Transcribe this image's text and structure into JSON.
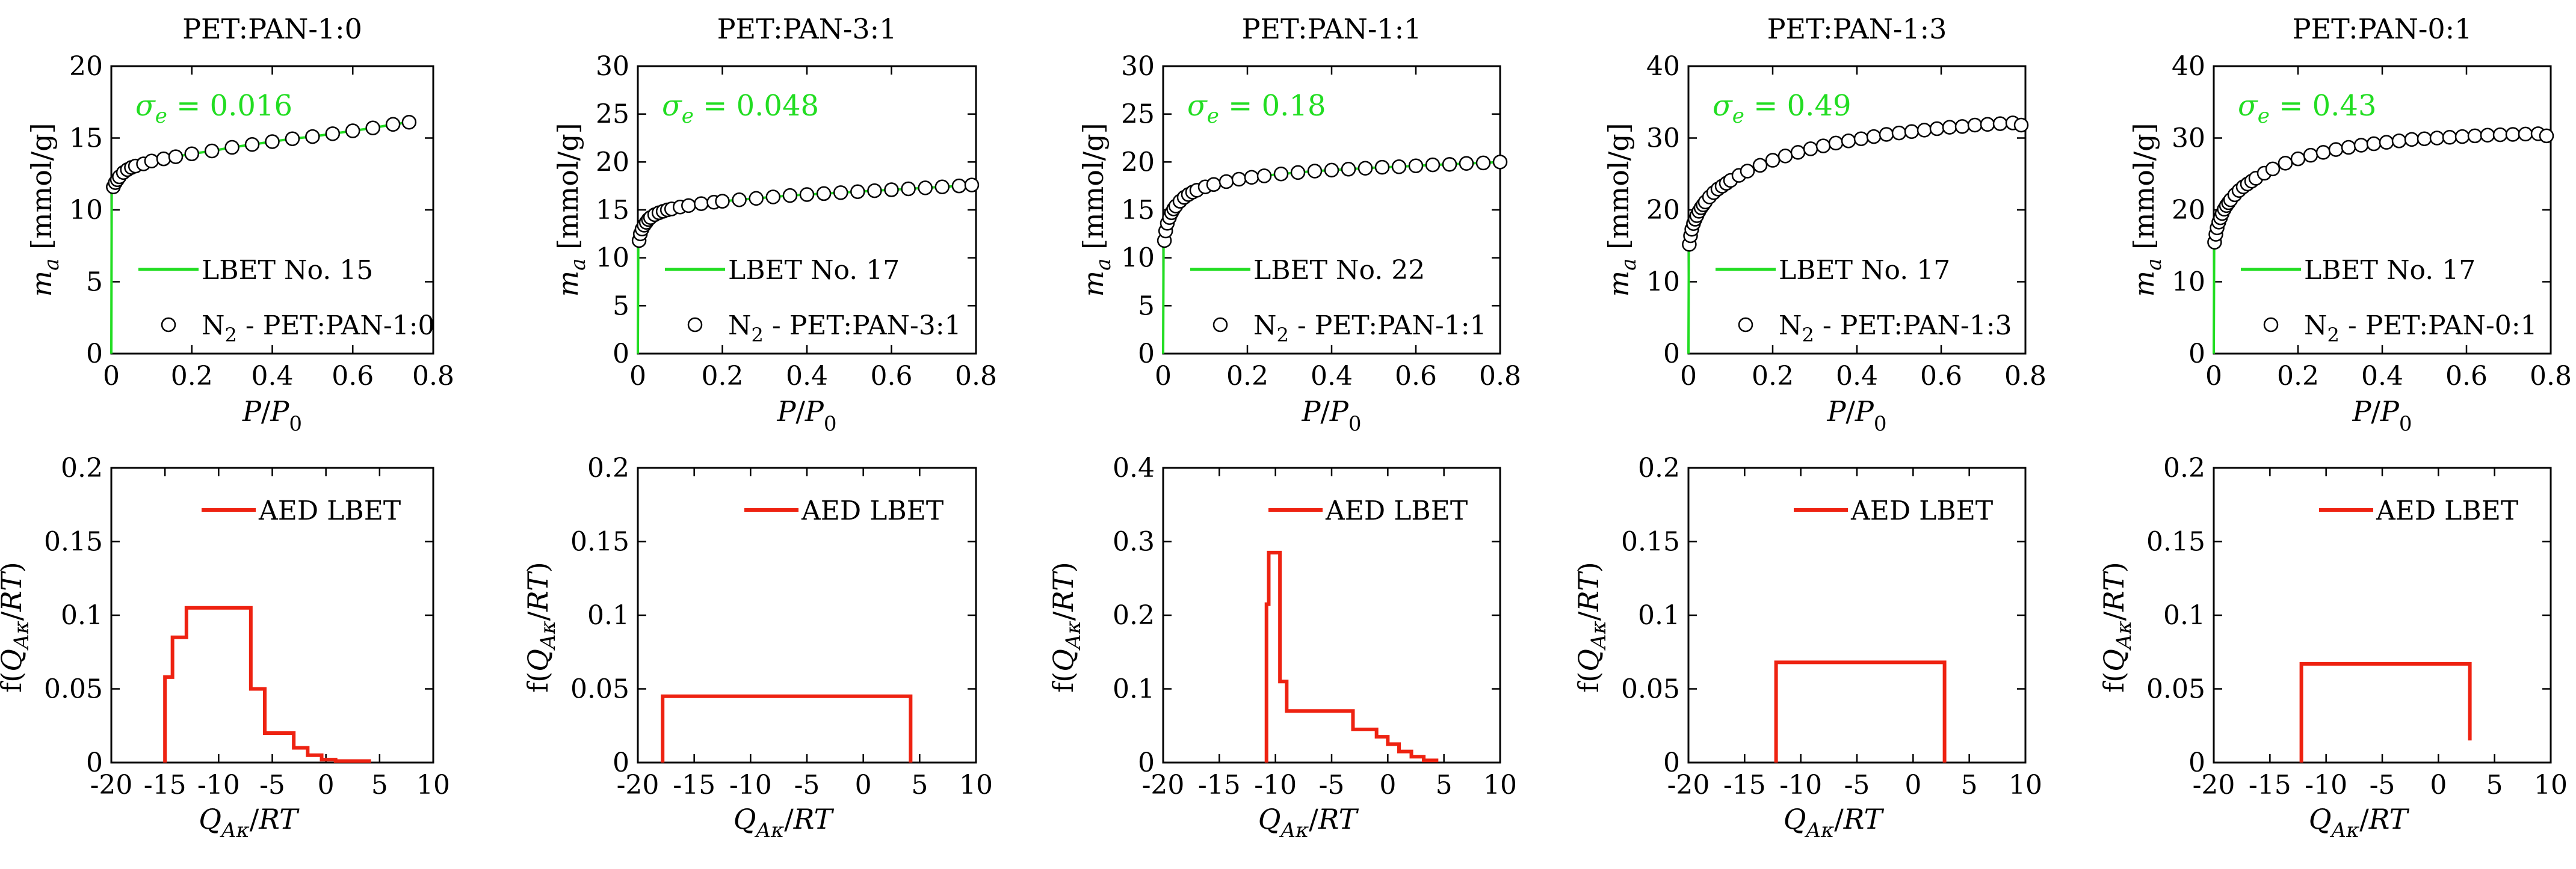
{
  "figure": {
    "description_colors": {
      "fit_line": "#22dd22",
      "aed_line": "#ee2211",
      "sigma_text": "#22dd22",
      "points": "#000000"
    }
  },
  "chart_data": [
    {
      "type": "scatter",
      "title": "PET:PAN-1:0",
      "xlabel": "P/P0",
      "ylabel": "ma [mmol/g]",
      "xlim": [
        0,
        0.8
      ],
      "ylim": [
        0,
        20
      ],
      "xticks": [
        "0",
        "0.2",
        "0.4",
        "0.6",
        "0.8"
      ],
      "yticks": [
        "0",
        "5",
        "10",
        "15",
        "20"
      ],
      "sigma_label": "σe = 0.016",
      "legend": [
        "LBET No. 15",
        "N2 - PET:PAN-1:0"
      ],
      "x": [
        0.005,
        0.01,
        0.015,
        0.02,
        0.03,
        0.04,
        0.05,
        0.06,
        0.08,
        0.1,
        0.13,
        0.16,
        0.2,
        0.25,
        0.3,
        0.35,
        0.4,
        0.45,
        0.5,
        0.55,
        0.6,
        0.65,
        0.7,
        0.74
      ],
      "y": [
        11.6,
        11.9,
        12.1,
        12.3,
        12.6,
        12.8,
        12.95,
        13.05,
        13.2,
        13.4,
        13.55,
        13.7,
        13.9,
        14.1,
        14.35,
        14.55,
        14.75,
        14.95,
        15.1,
        15.3,
        15.5,
        15.7,
        15.95,
        16.1
      ]
    },
    {
      "type": "scatter",
      "title": "PET:PAN-3:1",
      "xlabel": "P/P0",
      "ylabel": "ma [mmol/g]",
      "xlim": [
        0,
        0.8
      ],
      "ylim": [
        0,
        30
      ],
      "xticks": [
        "0",
        "0.2",
        "0.4",
        "0.6",
        "0.8"
      ],
      "yticks": [
        "0",
        "5",
        "10",
        "15",
        "20",
        "25",
        "30"
      ],
      "sigma_label": "σe = 0.048",
      "legend": [
        "LBET No. 17",
        "N2 - PET:PAN-3:1"
      ],
      "x": [
        0.003,
        0.006,
        0.01,
        0.015,
        0.02,
        0.025,
        0.03,
        0.04,
        0.05,
        0.06,
        0.07,
        0.08,
        0.1,
        0.12,
        0.15,
        0.18,
        0.2,
        0.24,
        0.28,
        0.32,
        0.36,
        0.4,
        0.44,
        0.48,
        0.52,
        0.56,
        0.6,
        0.64,
        0.68,
        0.72,
        0.76,
        0.79
      ],
      "y": [
        11.8,
        12.5,
        13.0,
        13.4,
        13.7,
        14.0,
        14.2,
        14.5,
        14.7,
        14.85,
        15.0,
        15.1,
        15.3,
        15.45,
        15.65,
        15.8,
        15.9,
        16.05,
        16.2,
        16.35,
        16.5,
        16.6,
        16.7,
        16.8,
        16.9,
        17.0,
        17.1,
        17.2,
        17.3,
        17.4,
        17.5,
        17.6
      ]
    },
    {
      "type": "scatter",
      "title": "PET:PAN-1:1",
      "xlabel": "P/P0",
      "ylabel": "ma [mmol/g]",
      "xlim": [
        0,
        0.8
      ],
      "ylim": [
        0,
        30
      ],
      "xticks": [
        "0",
        "0.2",
        "0.4",
        "0.6",
        "0.8"
      ],
      "yticks": [
        "0",
        "5",
        "10",
        "15",
        "20",
        "25",
        "30"
      ],
      "sigma_label": "σe = 0.18",
      "legend": [
        "LBET No. 22",
        "N2 - PET:PAN-1:1"
      ],
      "x": [
        0.003,
        0.006,
        0.01,
        0.015,
        0.02,
        0.025,
        0.03,
        0.04,
        0.05,
        0.06,
        0.07,
        0.08,
        0.1,
        0.12,
        0.15,
        0.18,
        0.21,
        0.24,
        0.28,
        0.32,
        0.36,
        0.4,
        0.44,
        0.48,
        0.52,
        0.56,
        0.6,
        0.64,
        0.68,
        0.72,
        0.76,
        0.8
      ],
      "y": [
        11.8,
        12.8,
        13.6,
        14.2,
        14.7,
        15.1,
        15.4,
        15.9,
        16.3,
        16.6,
        16.85,
        17.05,
        17.4,
        17.65,
        17.95,
        18.2,
        18.4,
        18.55,
        18.75,
        18.9,
        19.05,
        19.15,
        19.25,
        19.35,
        19.45,
        19.5,
        19.6,
        19.7,
        19.75,
        19.85,
        19.9,
        20.0
      ]
    },
    {
      "type": "scatter",
      "title": "PET:PAN-1:3",
      "xlabel": "P/P0",
      "ylabel": "ma [mmol/g]",
      "xlim": [
        0,
        0.8
      ],
      "ylim": [
        0,
        40
      ],
      "xticks": [
        "0",
        "0.2",
        "0.4",
        "0.6",
        "0.8"
      ],
      "yticks": [
        "0",
        "10",
        "20",
        "30",
        "40"
      ],
      "sigma_label": "σe = 0.49",
      "legend": [
        "LBET No. 17",
        "N2 - PET:PAN-1:3"
      ],
      "x": [
        0.002,
        0.005,
        0.008,
        0.012,
        0.016,
        0.02,
        0.025,
        0.03,
        0.035,
        0.04,
        0.05,
        0.06,
        0.07,
        0.08,
        0.09,
        0.1,
        0.12,
        0.14,
        0.17,
        0.2,
        0.23,
        0.26,
        0.29,
        0.32,
        0.35,
        0.38,
        0.41,
        0.44,
        0.47,
        0.5,
        0.53,
        0.56,
        0.59,
        0.62,
        0.65,
        0.68,
        0.71,
        0.74,
        0.77,
        0.79
      ],
      "y": [
        15.2,
        16.4,
        17.3,
        18.1,
        18.7,
        19.2,
        19.8,
        20.3,
        20.7,
        21.1,
        21.8,
        22.4,
        22.9,
        23.3,
        23.7,
        24.1,
        24.8,
        25.4,
        26.2,
        26.9,
        27.5,
        28.0,
        28.5,
        28.9,
        29.3,
        29.6,
        29.9,
        30.2,
        30.5,
        30.7,
        30.9,
        31.1,
        31.3,
        31.5,
        31.6,
        31.8,
        31.9,
        32.0,
        32.1,
        31.8
      ]
    },
    {
      "type": "scatter",
      "title": "PET:PAN-0:1",
      "xlabel": "P/P0",
      "ylabel": "ma [mmol/g]",
      "xlim": [
        0,
        0.8
      ],
      "ylim": [
        0,
        40
      ],
      "xticks": [
        "0",
        "0.2",
        "0.4",
        "0.6",
        "0.8"
      ],
      "yticks": [
        "0",
        "10",
        "20",
        "30",
        "40"
      ],
      "sigma_label": "σe = 0.43",
      "legend": [
        "LBET No. 17",
        "N2 - PET:PAN-0:1"
      ],
      "x": [
        0.002,
        0.005,
        0.008,
        0.012,
        0.016,
        0.02,
        0.025,
        0.03,
        0.035,
        0.04,
        0.05,
        0.06,
        0.07,
        0.08,
        0.09,
        0.1,
        0.12,
        0.14,
        0.17,
        0.2,
        0.23,
        0.26,
        0.29,
        0.32,
        0.35,
        0.38,
        0.41,
        0.44,
        0.47,
        0.5,
        0.53,
        0.56,
        0.59,
        0.62,
        0.65,
        0.68,
        0.71,
        0.74,
        0.77,
        0.79
      ],
      "y": [
        15.5,
        16.6,
        17.5,
        18.3,
        18.9,
        19.5,
        20.1,
        20.6,
        21.0,
        21.4,
        22.1,
        22.7,
        23.2,
        23.6,
        24.0,
        24.4,
        25.1,
        25.7,
        26.5,
        27.1,
        27.6,
        28.0,
        28.4,
        28.7,
        29.0,
        29.2,
        29.4,
        29.6,
        29.8,
        29.9,
        30.0,
        30.1,
        30.2,
        30.3,
        30.4,
        30.45,
        30.5,
        30.55,
        30.6,
        30.3
      ]
    },
    {
      "type": "line",
      "xlabel": "QAκ/RT",
      "ylabel": "f(QAκ/RT)",
      "xlim": [
        -20,
        10
      ],
      "ylim": [
        0,
        0.2
      ],
      "xticks": [
        "-20",
        "-15",
        "-10",
        "-5",
        "0",
        "5",
        "10"
      ],
      "yticks": [
        "0",
        "0.05",
        "0.1",
        "0.15",
        "0.2"
      ],
      "legend": [
        "AED LBET"
      ],
      "x": [
        -15,
        -15,
        -14.3,
        -14.3,
        -13.0,
        -13.0,
        -11.7,
        -11.7,
        -7.0,
        -7.0,
        -5.7,
        -5.7,
        -3.0,
        -3.0,
        -1.7,
        -1.7,
        -0.4,
        -0.4,
        0.9,
        0.9,
        4.2
      ],
      "y": [
        0,
        0.058,
        0.058,
        0.085,
        0.085,
        0.105,
        0.105,
        0.105,
        0.105,
        0.05,
        0.05,
        0.02,
        0.02,
        0.01,
        0.01,
        0.005,
        0.005,
        0.002,
        0.002,
        0.001,
        0.001
      ]
    },
    {
      "type": "line",
      "xlabel": "QAκ/RT",
      "ylabel": "f(QAκ/RT)",
      "xlim": [
        -20,
        10
      ],
      "ylim": [
        0,
        0.2
      ],
      "xticks": [
        "-20",
        "-15",
        "-10",
        "-5",
        "0",
        "5",
        "10"
      ],
      "yticks": [
        "0",
        "0.05",
        "0.1",
        "0.15",
        "0.2"
      ],
      "legend": [
        "AED LBET"
      ],
      "x": [
        -17.8,
        -17.8,
        4.2,
        4.2
      ],
      "y": [
        0,
        0.045,
        0.045,
        0
      ]
    },
    {
      "type": "line",
      "xlabel": "QAκ/RT",
      "ylabel": "f(QAκ/RT)",
      "xlim": [
        -20,
        10
      ],
      "ylim": [
        0,
        0.4
      ],
      "xticks": [
        "-20",
        "-15",
        "-10",
        "-5",
        "0",
        "5",
        "10"
      ],
      "yticks": [
        "0",
        "0.1",
        "0.2",
        "0.3",
        "0.4"
      ],
      "legend": [
        "AED LBET"
      ],
      "x": [
        -10.8,
        -10.8,
        -10.6,
        -10.6,
        -10.3,
        -10.3,
        -9.6,
        -9.6,
        -9.0,
        -9.0,
        -3.1,
        -3.1,
        -1.0,
        -1.0,
        0.0,
        0.0,
        1.0,
        1.0,
        2.1,
        2.1,
        3.2,
        3.2,
        4.5
      ],
      "y": [
        0,
        0.215,
        0.215,
        0.285,
        0.285,
        0.285,
        0.285,
        0.11,
        0.11,
        0.07,
        0.07,
        0.045,
        0.045,
        0.035,
        0.035,
        0.025,
        0.025,
        0.015,
        0.015,
        0.008,
        0.008,
        0.003,
        0.003
      ]
    },
    {
      "type": "line",
      "xlabel": "QAκ/RT",
      "ylabel": "f(QAκ/RT)",
      "xlim": [
        -20,
        10
      ],
      "ylim": [
        0,
        0.2
      ],
      "xticks": [
        "-20",
        "-15",
        "-10",
        "-5",
        "0",
        "5",
        "10"
      ],
      "yticks": [
        "0",
        "0.05",
        "0.1",
        "0.15",
        "0.2"
      ],
      "legend": [
        "AED LBET"
      ],
      "x": [
        -12.2,
        -12.2,
        2.8,
        2.8
      ],
      "y": [
        0,
        0.068,
        0.068,
        0
      ]
    },
    {
      "type": "line",
      "xlabel": "QAκ/RT",
      "ylabel": "f(QAκ/RT)",
      "xlim": [
        -20,
        10
      ],
      "ylim": [
        0,
        0.2
      ],
      "xticks": [
        "-20",
        "-15",
        "-10",
        "-5",
        "0",
        "5",
        "10"
      ],
      "yticks": [
        "0",
        "0.05",
        "0.1",
        "0.15",
        "0.2"
      ],
      "legend": [
        "AED LBET"
      ],
      "x": [
        -12.2,
        -12.2,
        2.8,
        2.8
      ],
      "y": [
        0,
        0.067,
        0.067,
        0.015
      ]
    }
  ]
}
